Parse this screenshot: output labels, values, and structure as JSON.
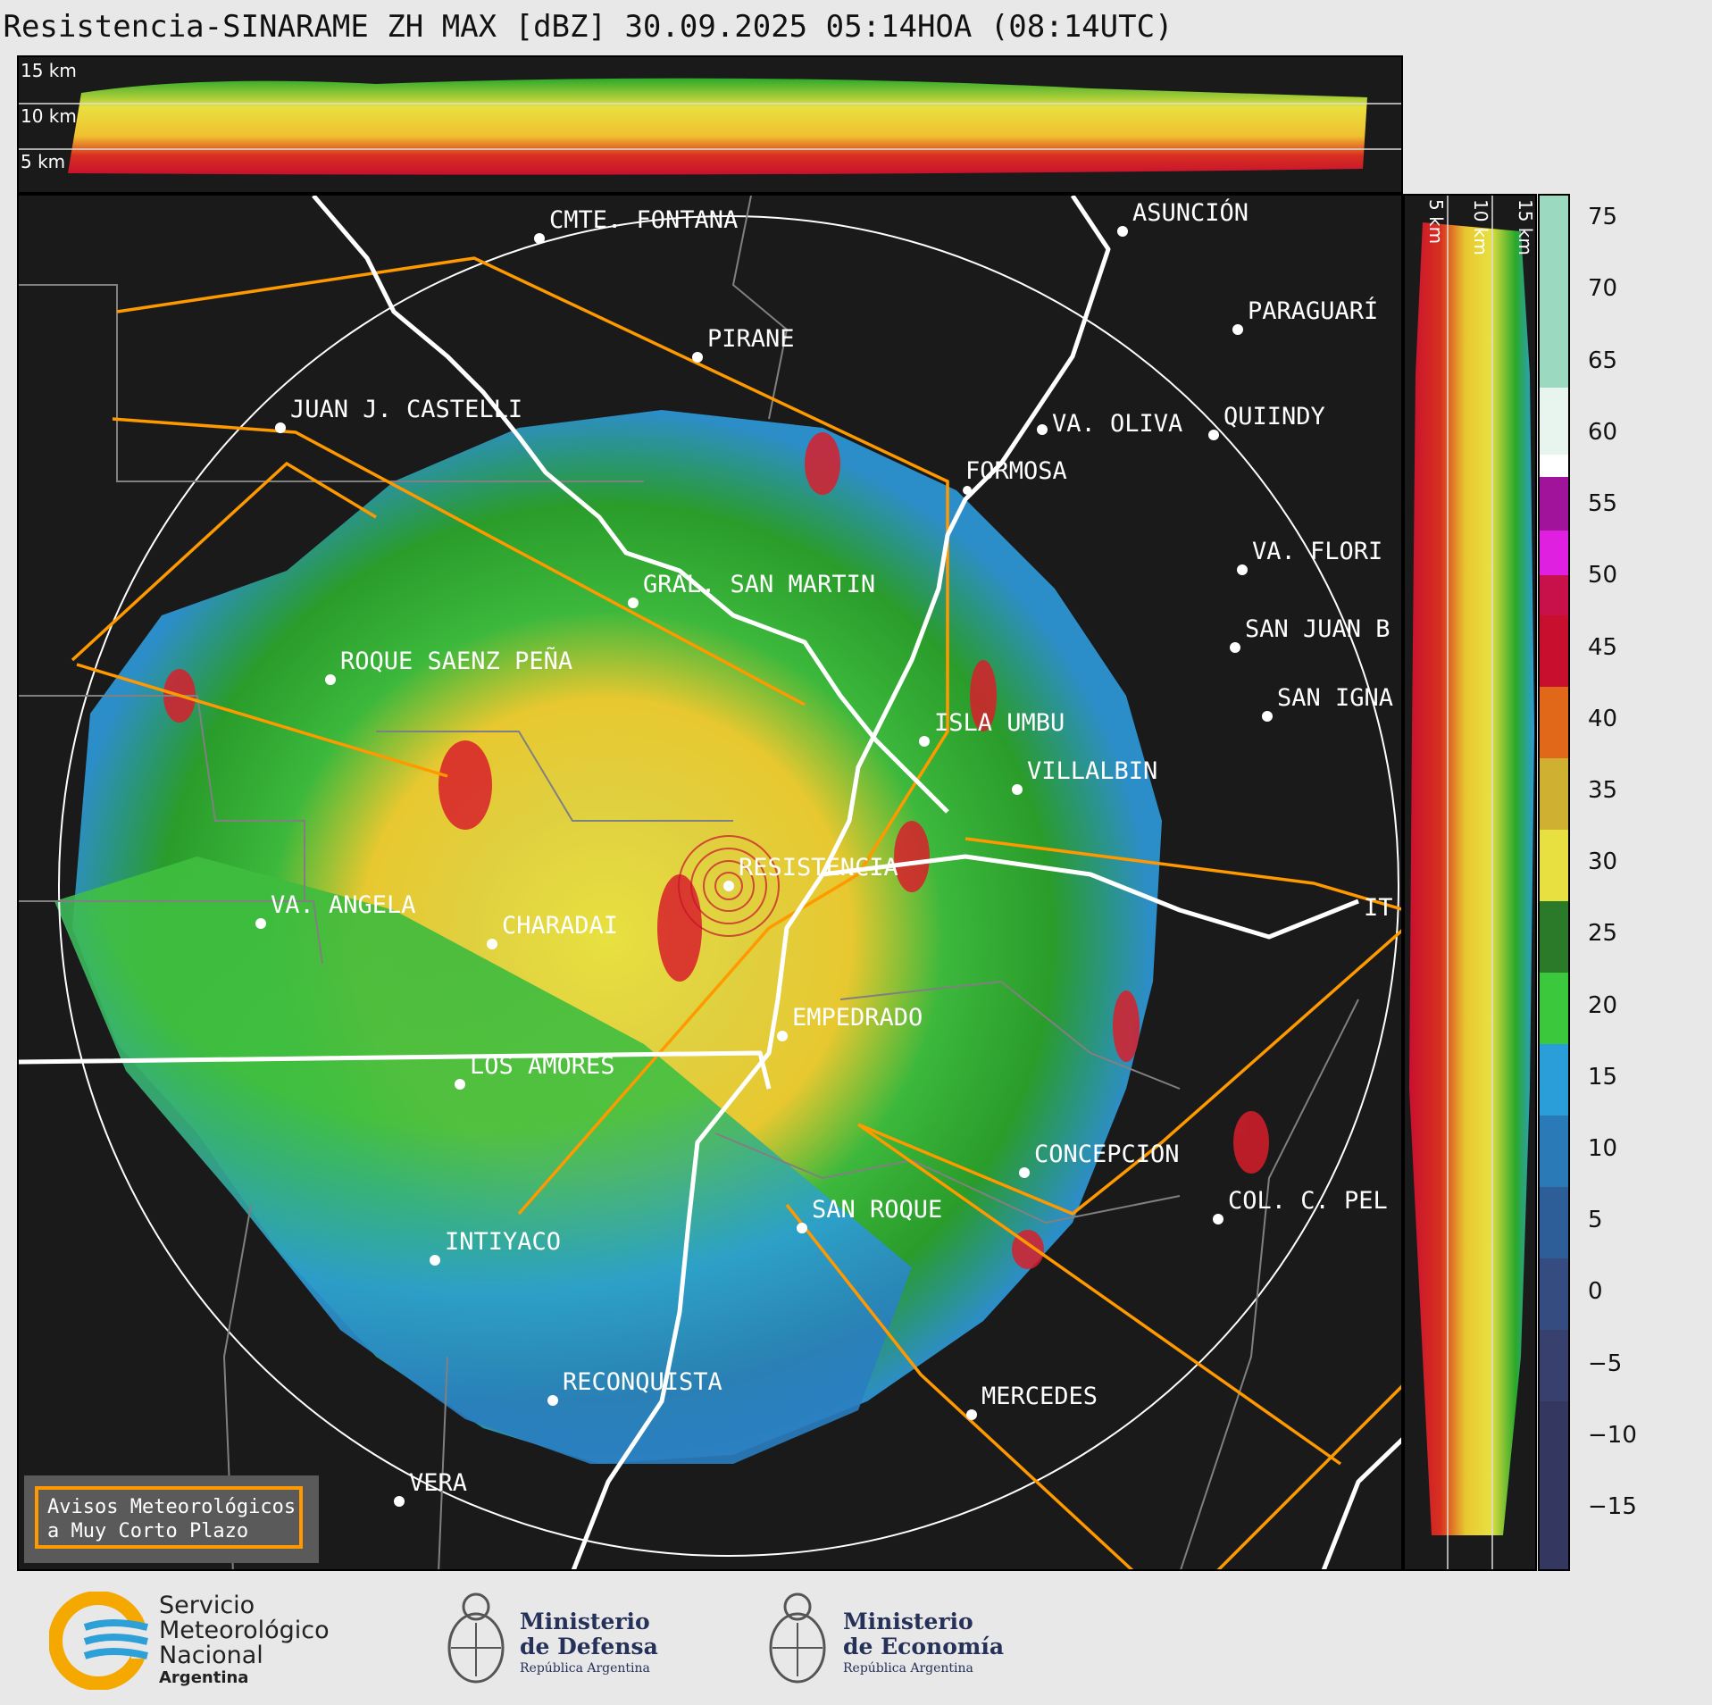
{
  "title": "Resistencia-SINARAME ZH MAX [dBZ] 30.09.2025 05:14HOA (08:14UTC)",
  "top_strip": {
    "height_labels": [
      "15 km",
      "10 km",
      "5 km"
    ]
  },
  "side_strip": {
    "height_labels": [
      "5 km",
      "10 km",
      "15 km"
    ]
  },
  "colorbar": {
    "unit": "dBZ",
    "ticks": [
      "75",
      "70",
      "65",
      "60",
      "55",
      "50",
      "45",
      "40",
      "35",
      "30",
      "25",
      "20",
      "15",
      "10",
      "5",
      "0",
      "−5",
      "−10",
      "−15"
    ]
  },
  "cities": [
    {
      "name": "CMTE. FONTANA"
    },
    {
      "name": "ASUNCIÓN"
    },
    {
      "name": "PARAGUARÍ"
    },
    {
      "name": "PIRANE"
    },
    {
      "name": "JUAN J. CASTELLI"
    },
    {
      "name": "VA. OLIVA"
    },
    {
      "name": "QUIINDY"
    },
    {
      "name": "FORMOSA"
    },
    {
      "name": "VA. FLORI"
    },
    {
      "name": "GRAL. SAN MARTIN"
    },
    {
      "name": "SAN JUAN B"
    },
    {
      "name": "ROQUE SAENZ PEÑA"
    },
    {
      "name": "SAN IGNA"
    },
    {
      "name": "ISLA UMBU"
    },
    {
      "name": "VILLALBIN"
    },
    {
      "name": "RESISTENCIA"
    },
    {
      "name": "IT"
    },
    {
      "name": "VA. ANGELA"
    },
    {
      "name": "CHARADAI"
    },
    {
      "name": "EMPEDRADO"
    },
    {
      "name": "LOS AMORES"
    },
    {
      "name": "CONCEPCION"
    },
    {
      "name": "SAN ROQUE"
    },
    {
      "name": "COL. C. PEL"
    },
    {
      "name": "INTIYACO"
    },
    {
      "name": "RECONQUISTA"
    },
    {
      "name": "MERCEDES"
    },
    {
      "name": "VERA"
    }
  ],
  "alert": {
    "line1": "Avisos Meteorológicos",
    "line2": "a Muy Corto Plazo"
  },
  "footer": {
    "smn": {
      "line1": "Servicio",
      "line2": "Meteorológico",
      "line3": "Nacional",
      "line4": "Argentina"
    },
    "defensa": {
      "line1": "Ministerio",
      "line2": "de Defensa",
      "line3": "República Argentina"
    },
    "economia": {
      "line1": "Ministerio",
      "line2": "de Economía",
      "line3": "República Argentina"
    }
  },
  "colors": {
    "border_orange": "#ff9900",
    "river_white": "#ffffff",
    "province_gray": "#808080",
    "background": "#1a1a1a"
  }
}
